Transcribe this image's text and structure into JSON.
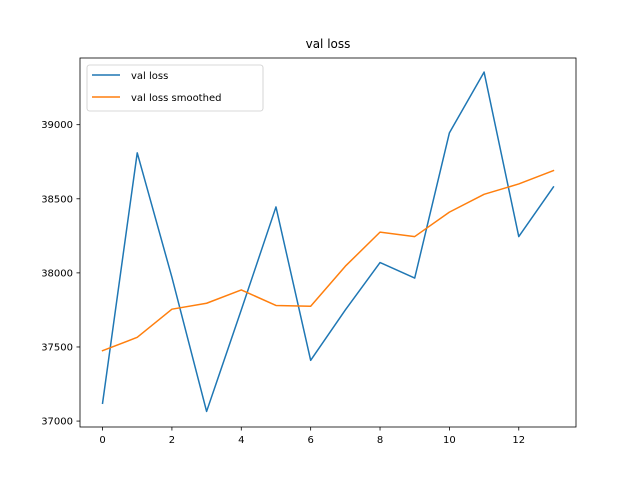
{
  "chart_data": {
    "type": "line",
    "title": "val loss",
    "xlabel": "",
    "ylabel": "",
    "xlim": [
      -0.65,
      13.65
    ],
    "ylim": [
      36960,
      39450
    ],
    "x_ticks": [
      0,
      2,
      4,
      6,
      8,
      10,
      12
    ],
    "y_ticks": [
      37000,
      37500,
      38000,
      38500,
      39000
    ],
    "grid": false,
    "legend_position": "top-left",
    "x": [
      0,
      1,
      2,
      3,
      4,
      5,
      6,
      7,
      8,
      9,
      10,
      11,
      12,
      13
    ],
    "series": [
      {
        "name": "val loss",
        "color": "#1f77b4",
        "values": [
          37120,
          38810,
          37970,
          37065,
          37750,
          38445,
          37410,
          37750,
          38070,
          37965,
          38945,
          39355,
          38245,
          38580
        ]
      },
      {
        "name": "val loss smoothed",
        "color": "#ff7f0e",
        "values": [
          37475,
          37565,
          37755,
          37795,
          37885,
          37780,
          37775,
          38045,
          38275,
          38245,
          38410,
          38530,
          38600,
          38690
        ]
      }
    ]
  }
}
